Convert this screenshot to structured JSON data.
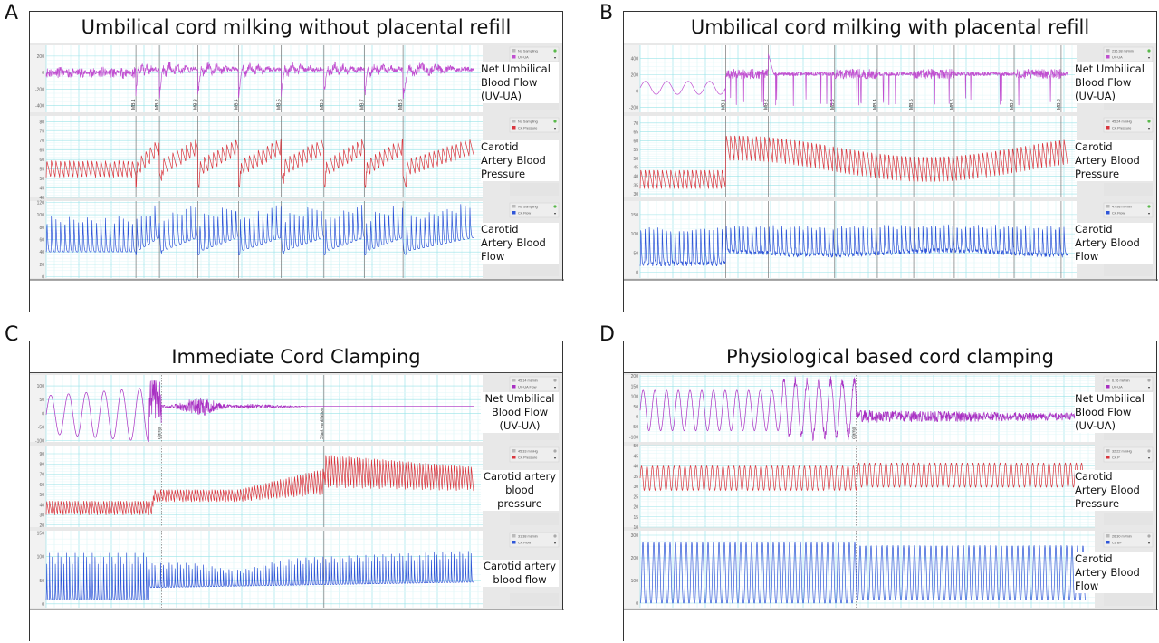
{
  "chart_data": [
    {
      "type": "line",
      "panel": "A",
      "title": "Umbilical cord milking without placental refill",
      "markers": [
        "MB.1",
        "MB.2",
        "MB.3",
        "MB.4",
        "MB.5",
        "MB.6",
        "MB.7",
        "MB.8"
      ],
      "marker_positions": [
        0.21,
        0.265,
        0.355,
        0.45,
        0.55,
        0.65,
        0.745,
        0.835
      ],
      "traces": [
        {
          "name": "Net Umbilical Blood Flow (UV-UA)",
          "label_lines": [
            "Net Umbilical",
            "Blood Flow",
            "(UV-UA)"
          ],
          "color": "#c04fd0",
          "legend": [
            "No Sampling",
            "UV-UA"
          ],
          "yticks": [
            200,
            0,
            -200,
            -400
          ],
          "ylim": [
            -480,
            330
          ],
          "baseline": 0,
          "amp": 60,
          "beats": 40,
          "pattern": "milking_flow",
          "spike_up": 230,
          "spike_down": -400
        },
        {
          "name": "Carotid Artery Blood Pressure",
          "label_lines": [
            "Carotid",
            "Artery Blood",
            "Pressure"
          ],
          "color": "#d9363e",
          "legend": [
            "No Sampling",
            "CA Pressure"
          ],
          "yticks": [
            80,
            75,
            70,
            65,
            60,
            55,
            50,
            45,
            40
          ],
          "ylim": [
            40,
            83
          ],
          "baseline": 53,
          "amp": 8,
          "beats": 95,
          "pattern": "milking_pressure",
          "rise": 12
        },
        {
          "name": "Carotid Artery Blood Flow",
          "label_lines": [
            "Carotid",
            "Artery Blood",
            "Flow"
          ],
          "color": "#2f56d8",
          "legend": [
            "No Sampling",
            "CA Flow"
          ],
          "yticks": [
            120,
            100,
            80,
            60,
            40,
            20,
            0
          ],
          "ylim": [
            -2,
            122
          ],
          "baseline": 40,
          "peak": 98,
          "beats": 95,
          "pattern": "milking_cflow",
          "rise": 18
        }
      ]
    },
    {
      "type": "line",
      "panel": "B",
      "title": "Umbilical cord milking with placental refill",
      "markers": [
        "MB.1",
        "MB.2",
        "MB.3",
        "MB.4",
        "MB.5",
        "MB.6",
        "MB.7",
        "MB.8"
      ],
      "marker_positions": [
        0.2,
        0.3,
        0.455,
        0.555,
        0.64,
        0.735,
        0.875,
        0.985
      ],
      "traces": [
        {
          "name": "Net Umbilical Blood Flow (UV-UA)",
          "label_lines": [
            "Net Umbilical",
            "Blood Flow",
            "(UV-UA)"
          ],
          "color": "#c04fd0",
          "legend": [
            "236.38 ml/min",
            "UV-UA"
          ],
          "yticks": [
            400,
            200,
            0,
            -200
          ],
          "ylim": [
            -260,
            560
          ],
          "baseline": 210,
          "amp": 40,
          "beats": 20,
          "pattern": "refill_flow"
        },
        {
          "name": "Carotid Artery Blood Pressure",
          "label_lines": [
            "Carotid",
            "Artery Blood",
            "Pressure"
          ],
          "color": "#d9363e",
          "legend": [
            "45.24 mmHg",
            "CA Pressure"
          ],
          "yticks": [
            70,
            65,
            60,
            55,
            50,
            45,
            40,
            35,
            30
          ],
          "ylim": [
            28,
            74
          ],
          "baseline": 38,
          "amp": 9,
          "beats": 100,
          "pattern": "refill_pressure"
        },
        {
          "name": "Carotid Artery Blood Flow",
          "label_lines": [
            "Carotid",
            "Artery Blood",
            "Flow"
          ],
          "color": "#2f56d8",
          "legend": [
            "47.98 ml/min",
            "CA Flow"
          ],
          "yticks": [
            150,
            100,
            50,
            0
          ],
          "ylim": [
            -15,
            185
          ],
          "baseline": 22,
          "peak": 135,
          "beats": 100,
          "pattern": "refill_cflow"
        }
      ]
    },
    {
      "type": "line",
      "panel": "C",
      "title": "Immediate Cord Clamping",
      "markers": [
        "clamp",
        "Start ventilation"
      ],
      "marker_positions": [
        0.27,
        0.65
      ],
      "traces": [
        {
          "name": "Net Umbilical Blood Flow (UV-UA)",
          "label_lines": [
            "Net Umbilical",
            "Blood Flow",
            "(UV-UA)"
          ],
          "color": "#a82fc2",
          "legend": [
            "45.14 ml/min",
            "UV-UA Flow"
          ],
          "yticks": [
            100,
            50,
            0,
            -50,
            -100
          ],
          "ylim": [
            -105,
            140
          ],
          "baseline": 25,
          "amp": 70,
          "beats": 24,
          "pattern": "icc_flow"
        },
        {
          "name": "Carotid artery blood pressure",
          "label_lines": [
            "Carotid artery",
            "blood",
            "pressure"
          ],
          "color": "#d9363e",
          "legend": [
            "45.33 mmHg",
            "CA Pressure"
          ],
          "yticks": [
            90,
            80,
            70,
            60,
            50,
            40,
            30,
            20
          ],
          "ylim": [
            18,
            98
          ],
          "baseline": 30,
          "amp": 14,
          "beats": 150,
          "pattern": "icc_pressure"
        },
        {
          "name": "Carotid artery blood flow",
          "label_lines": [
            "Carotid artery",
            "blood flow"
          ],
          "color": "#2f56d8",
          "legend": [
            "31.38 ml/min",
            "CA Flow"
          ],
          "yticks": [
            150,
            100,
            50,
            0
          ],
          "ylim": [
            -8,
            155
          ],
          "baseline": 8,
          "peak": 130,
          "beats": 150,
          "pattern": "icc_cflow"
        }
      ]
    },
    {
      "type": "line",
      "panel": "D",
      "title": "Physiological based cord clamping",
      "markers": [
        "clamp"
      ],
      "marker_positions": [
        0.485
      ],
      "traces": [
        {
          "name": "Net Umbilical Blood Flow (UV-UA)",
          "label_lines": [
            "Net Umbilical",
            "Blood Flow",
            "(UV-UA)"
          ],
          "color": "#a82fc2",
          "legend": [
            "6.76 ml/min",
            "UV-UA"
          ],
          "yticks": [
            200,
            150,
            100,
            50,
            0,
            -50,
            -100
          ],
          "ylim": [
            -125,
            205
          ],
          "baseline": 0,
          "amp": 100,
          "beats": 38,
          "pattern": "pbcc_flow"
        },
        {
          "name": "Carotid Artery Blood Pressure",
          "label_lines": [
            "Carotid",
            "Artery Blood",
            "Pressure"
          ],
          "color": "#d9363e",
          "legend": [
            "32.22 mmHg",
            "CA P"
          ],
          "yticks": [
            50,
            45,
            40,
            35,
            30,
            25,
            20,
            15,
            10
          ],
          "ylim": [
            10,
            50
          ],
          "baseline": 28,
          "amp": 13,
          "beats": 82,
          "pattern": "pbcc_pressure"
        },
        {
          "name": "Carotid Artery Blood Flow",
          "label_lines": [
            "Carotid",
            "Artery Blood",
            "Flow"
          ],
          "color": "#2f56d8",
          "legend": [
            "26.30 ml/min",
            "Ca BF"
          ],
          "yticks": [
            300,
            200,
            100,
            0
          ],
          "ylim": [
            -20,
            320
          ],
          "baseline": 0,
          "peak": 270,
          "beats": 82,
          "pattern": "pbcc_cflow"
        }
      ]
    }
  ]
}
